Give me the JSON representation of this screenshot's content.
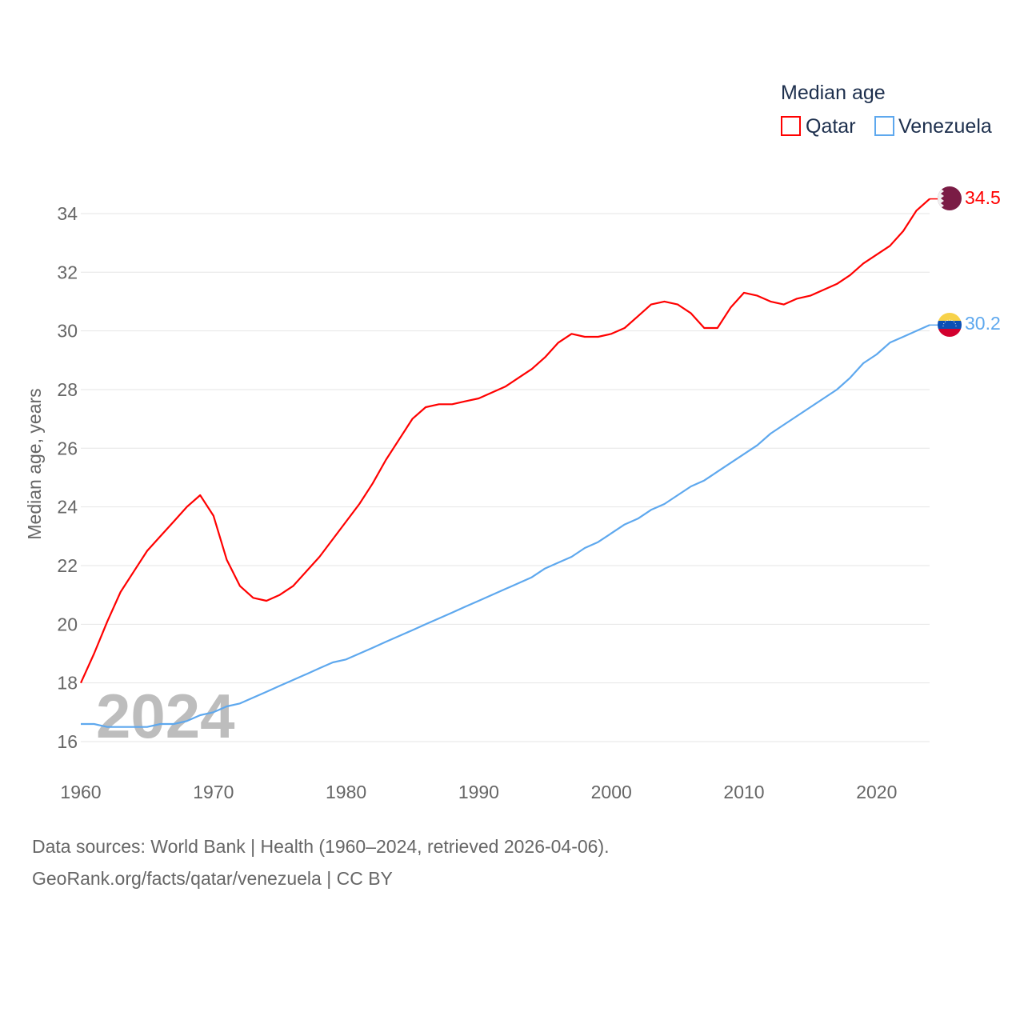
{
  "chart_data": {
    "type": "line",
    "title": "",
    "xlabel": "",
    "ylabel": "Median age, years",
    "xlim": [
      1960,
      2024
    ],
    "ylim": [
      15,
      35
    ],
    "yticks": [
      16,
      18,
      20,
      22,
      24,
      26,
      28,
      30,
      32,
      34
    ],
    "xticks": [
      1960,
      1970,
      1980,
      1990,
      2000,
      2010,
      2020
    ],
    "grid": true,
    "legend": {
      "title": "Median age",
      "placement": "top-right"
    },
    "watermark_year": "2024",
    "x": [
      1960,
      1961,
      1962,
      1963,
      1964,
      1965,
      1966,
      1967,
      1968,
      1969,
      1970,
      1971,
      1972,
      1973,
      1974,
      1975,
      1976,
      1977,
      1978,
      1979,
      1980,
      1981,
      1982,
      1983,
      1984,
      1985,
      1986,
      1987,
      1988,
      1989,
      1990,
      1991,
      1992,
      1993,
      1994,
      1995,
      1996,
      1997,
      1998,
      1999,
      2000,
      2001,
      2002,
      2003,
      2004,
      2005,
      2006,
      2007,
      2008,
      2009,
      2010,
      2011,
      2012,
      2013,
      2014,
      2015,
      2016,
      2017,
      2018,
      2019,
      2020,
      2021,
      2022,
      2023,
      2024
    ],
    "series": [
      {
        "name": "Qatar",
        "color": "#ff0000",
        "end_label": "34.5",
        "values": [
          18.0,
          19.0,
          20.1,
          21.1,
          21.8,
          22.5,
          23.0,
          23.5,
          24.0,
          24.4,
          23.7,
          22.2,
          21.3,
          20.9,
          20.8,
          21.0,
          21.3,
          21.8,
          22.3,
          22.9,
          23.5,
          24.1,
          24.8,
          25.6,
          26.3,
          27.0,
          27.4,
          27.5,
          27.5,
          27.6,
          27.7,
          27.9,
          28.1,
          28.4,
          28.7,
          29.1,
          29.6,
          29.9,
          29.8,
          29.8,
          29.9,
          30.1,
          30.5,
          30.9,
          31.0,
          30.9,
          30.6,
          30.1,
          30.1,
          30.8,
          31.3,
          31.2,
          31.0,
          30.9,
          31.1,
          31.2,
          31.4,
          31.6,
          31.9,
          32.3,
          32.6,
          32.9,
          33.4,
          34.1,
          34.5
        ]
      },
      {
        "name": "Venezuela",
        "color": "#5ea8ee",
        "end_label": "30.2",
        "values": [
          16.6,
          16.6,
          16.5,
          16.5,
          16.5,
          16.5,
          16.6,
          16.6,
          16.7,
          16.9,
          17.0,
          17.2,
          17.3,
          17.5,
          17.7,
          17.9,
          18.1,
          18.3,
          18.5,
          18.7,
          18.8,
          19.0,
          19.2,
          19.4,
          19.6,
          19.8,
          20.0,
          20.2,
          20.4,
          20.6,
          20.8,
          21.0,
          21.2,
          21.4,
          21.6,
          21.9,
          22.1,
          22.3,
          22.6,
          22.8,
          23.1,
          23.4,
          23.6,
          23.9,
          24.1,
          24.4,
          24.7,
          24.9,
          25.2,
          25.5,
          25.8,
          26.1,
          26.5,
          26.8,
          27.1,
          27.4,
          27.7,
          28.0,
          28.4,
          28.9,
          29.2,
          29.6,
          29.8,
          30.0,
          30.2
        ]
      }
    ]
  },
  "footer": {
    "sources": "Data sources: World Bank | Health (1960–2024, retrieved 2026-04-06).",
    "credit": "GeoRank.org/facts/qatar/venezuela | CC BY"
  }
}
